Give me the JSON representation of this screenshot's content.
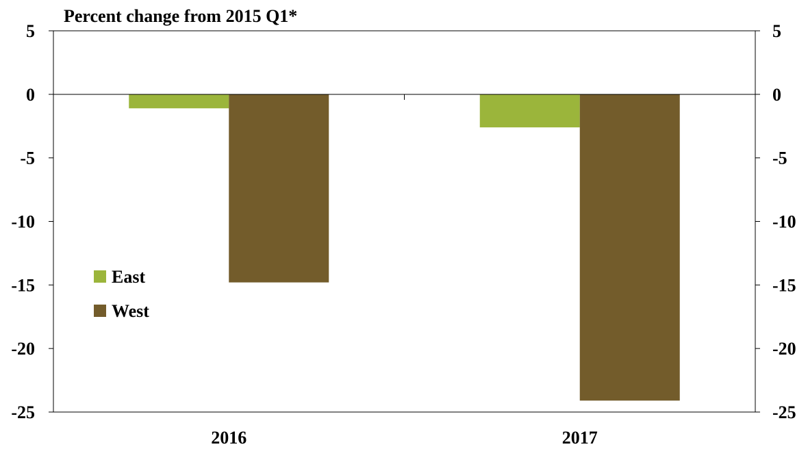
{
  "chart_data": {
    "type": "bar",
    "title": "Percent change from 2015 Q1*",
    "categories": [
      "2016",
      "2017"
    ],
    "series": [
      {
        "name": "East",
        "values": [
          -1.1,
          -2.6
        ],
        "color": "#9bb53b"
      },
      {
        "name": "West",
        "values": [
          -14.8,
          -24.1
        ],
        "color": "#735c2b"
      }
    ],
    "ylim": [
      -25,
      5
    ],
    "yticks": [
      5,
      0,
      -5,
      -10,
      -15,
      -20,
      -25
    ],
    "ytick_labels": [
      "5",
      "0",
      "-5",
      "-10",
      "-15",
      "-20",
      "-25"
    ],
    "secondary_axis": true,
    "grid": false,
    "legend_position": "left-middle",
    "xlabel": "",
    "ylabel": ""
  }
}
